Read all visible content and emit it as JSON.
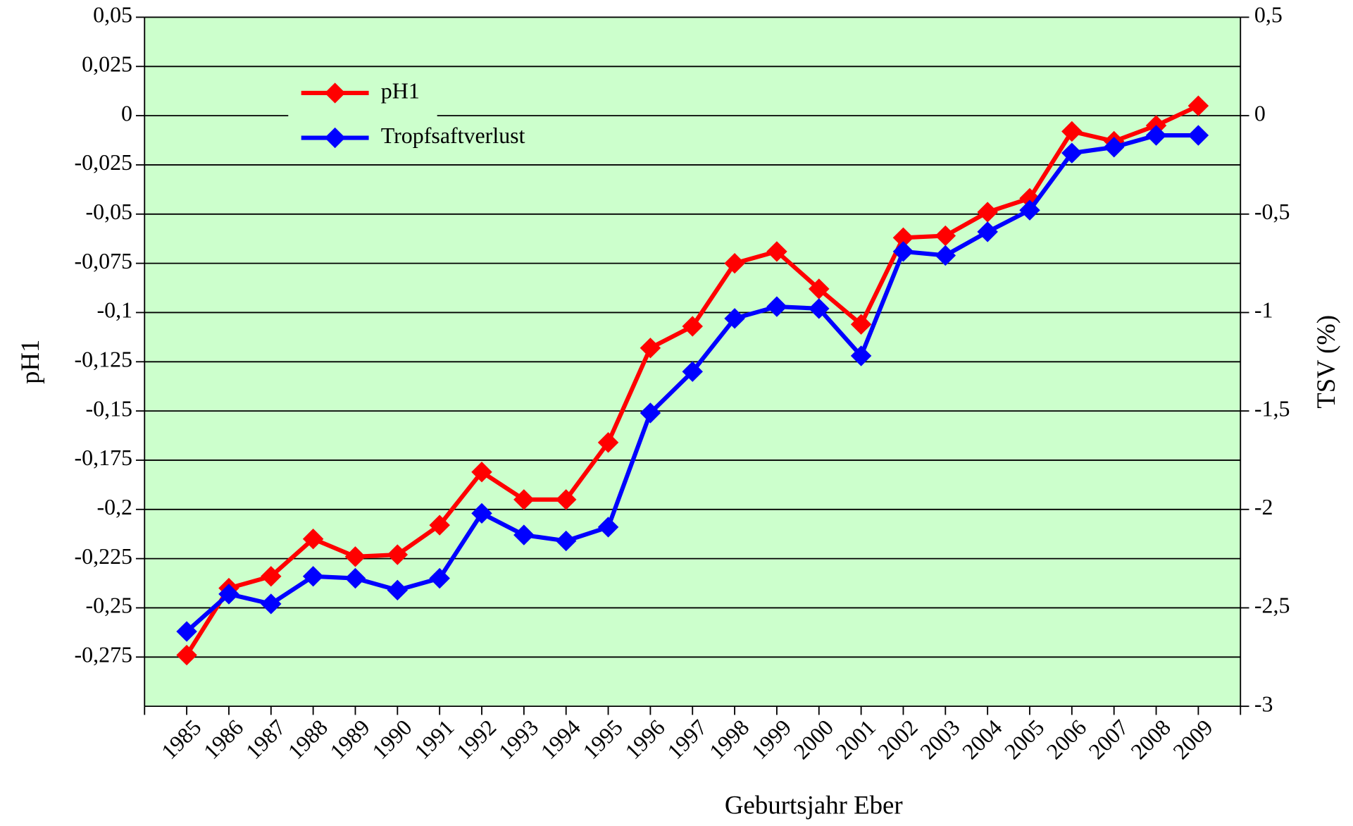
{
  "chart_data": {
    "type": "line",
    "xlabel": "Geburtsjahr Eber",
    "ylabel": "pH1",
    "y2label": "TSV (%)",
    "categories": [
      "1985",
      "1986",
      "1987",
      "1988",
      "1989",
      "1990",
      "1991",
      "1992",
      "1993",
      "1994",
      "1995",
      "1996",
      "1997",
      "1998",
      "1999",
      "2000",
      "2001",
      "2002",
      "2003",
      "2004",
      "2005",
      "2006",
      "2007",
      "2008",
      "2009"
    ],
    "series": [
      {
        "name": "pH1",
        "color": "#ff0000",
        "axis": "y",
        "values": [
          -0.274,
          -0.24,
          -0.234,
          -0.215,
          -0.224,
          -0.223,
          -0.208,
          -0.181,
          -0.195,
          -0.195,
          -0.166,
          -0.118,
          -0.107,
          -0.075,
          -0.069,
          -0.088,
          -0.106,
          -0.062,
          -0.061,
          -0.049,
          -0.042,
          -0.008,
          -0.013,
          -0.005,
          0.005
        ]
      },
      {
        "name": "Tropfsaftverlust",
        "color": "#0000ff",
        "axis": "y2",
        "values": [
          -2.62,
          -2.43,
          -2.48,
          -2.34,
          -2.35,
          -2.41,
          -2.35,
          -2.02,
          -2.13,
          -2.16,
          -2.09,
          -1.51,
          -1.3,
          -1.03,
          -0.97,
          -0.98,
          -1.22,
          -0.69,
          -0.71,
          -0.59,
          -0.48,
          -0.19,
          -0.16,
          -0.1,
          -0.1
        ]
      }
    ],
    "ylim": [
      -0.3,
      0.05
    ],
    "yticks": [
      {
        "value": 0.05,
        "label": "0,05"
      },
      {
        "value": 0.025,
        "label": "0,025"
      },
      0,
      {
        "value": -0.025,
        "label": "-0,025"
      },
      {
        "value": -0.05,
        "label": "-0,05"
      },
      {
        "value": -0.075,
        "label": "-0,075"
      },
      {
        "value": -0.1,
        "label": "-0,1"
      },
      {
        "value": -0.125,
        "label": "-0,125"
      },
      {
        "value": -0.15,
        "label": "-0,15"
      },
      {
        "value": -0.175,
        "label": "-0,175"
      },
      {
        "value": -0.2,
        "label": "-0,2"
      },
      {
        "value": -0.225,
        "label": "-0,225"
      },
      {
        "value": -0.25,
        "label": "-0,25"
      },
      {
        "value": -0.275,
        "label": "-0,275"
      }
    ],
    "y2lim": [
      -3,
      0.5
    ],
    "y2ticks": [
      {
        "value": 0.5,
        "label": "0,5"
      },
      0,
      {
        "value": -0.5,
        "label": "-0,5"
      },
      -1,
      {
        "value": -1.5,
        "label": "-1,5"
      },
      -2,
      {
        "value": -2.5,
        "label": "-2,5"
      },
      -3
    ],
    "grid": true,
    "plot_background": "#ccffcc",
    "legend": "upper left"
  }
}
